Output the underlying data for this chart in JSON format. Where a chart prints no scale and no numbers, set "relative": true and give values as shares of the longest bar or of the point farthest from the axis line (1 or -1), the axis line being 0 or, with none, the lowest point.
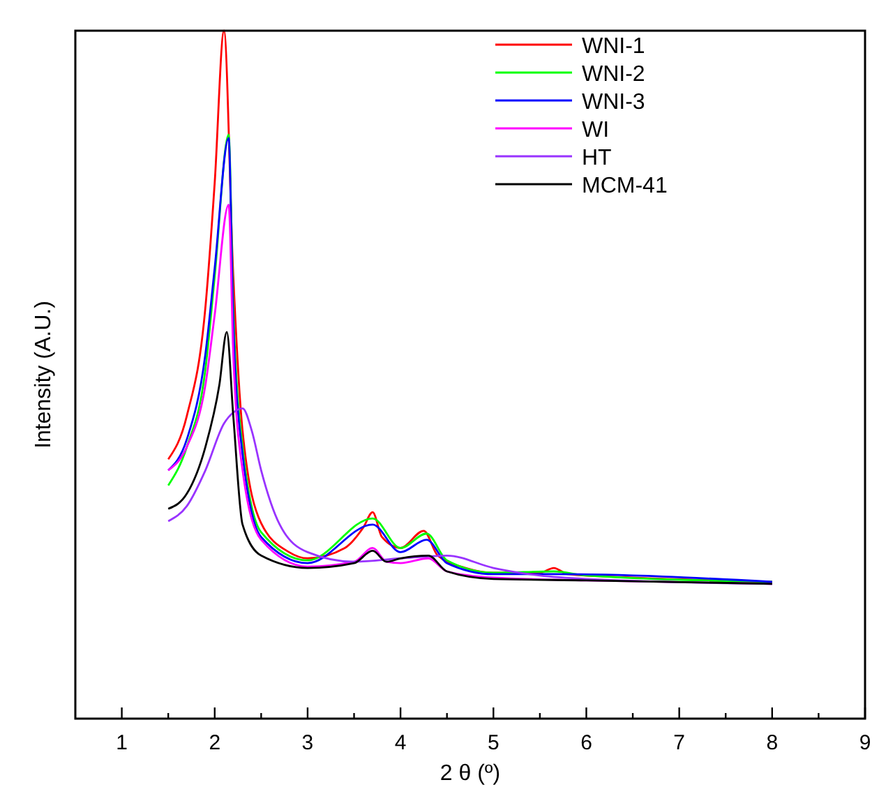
{
  "chart_data": {
    "type": "line",
    "relative": true,
    "xlabel": "2 θ (º)",
    "ylabel": "Intensity (A.U.)",
    "xlim": [
      0.5,
      9
    ],
    "xticks": [
      1,
      {
        "value": 1.5,
        "label": null
      },
      2,
      {
        "value": 2.5,
        "label": null
      },
      3,
      {
        "value": 3.5,
        "label": null
      },
      4,
      {
        "value": 4.5,
        "label": null
      },
      5,
      {
        "value": 5.5,
        "label": null
      },
      6,
      {
        "value": 6.5,
        "label": null
      },
      7,
      {
        "value": 7.5,
        "label": null
      },
      8,
      {
        "value": 8.5,
        "label": null
      },
      9
    ],
    "legend": "top right",
    "grid": false,
    "marker": "none",
    "line_style": "solid",
    "series": [
      {
        "name": "WNI-1",
        "color": "#ff0000",
        "x": [
          1.5,
          1.7,
          1.9,
          2.0,
          2.1,
          2.2,
          2.3,
          2.5,
          2.8,
          3.0,
          3.4,
          3.6,
          3.7,
          3.8,
          4.0,
          4.25,
          4.4,
          4.7,
          5.0,
          5.5,
          5.65,
          5.8,
          6.5,
          8
        ],
        "values": [
          0.377,
          0.44,
          0.598,
          0.779,
          1,
          0.643,
          0.418,
          0.284,
          0.242,
          0.233,
          0.248,
          0.278,
          0.3,
          0.264,
          0.248,
          0.273,
          0.237,
          0.219,
          0.212,
          0.212,
          0.219,
          0.21,
          0.205,
          0.199
        ]
      },
      {
        "name": "WNI-2",
        "color": "#00ff00",
        "x": [
          1.5,
          1.7,
          1.9,
          2.0,
          2.15,
          2.2,
          2.3,
          2.5,
          3.0,
          3.7,
          4.0,
          4.28,
          4.5,
          5.0,
          5.65,
          6.0,
          8
        ],
        "values": [
          0.339,
          0.395,
          0.508,
          0.643,
          0.849,
          0.598,
          0.395,
          0.271,
          0.23,
          0.291,
          0.248,
          0.269,
          0.23,
          0.212,
          0.214,
          0.208,
          0.199
        ]
      },
      {
        "name": "WNI-3",
        "color": "#0000ff",
        "x": [
          1.5,
          1.7,
          1.9,
          2.0,
          2.15,
          2.2,
          2.3,
          2.5,
          3.0,
          3.7,
          4.0,
          4.28,
          4.5,
          5.0,
          5.65,
          8
        ],
        "values": [
          0.361,
          0.406,
          0.53,
          0.655,
          0.844,
          0.576,
          0.384,
          0.264,
          0.226,
          0.282,
          0.242,
          0.26,
          0.226,
          0.21,
          0.21,
          0.199
        ]
      },
      {
        "name": "WI",
        "color": "#ff00ff",
        "x": [
          1.5,
          1.7,
          1.9,
          2.0,
          2.15,
          2.2,
          2.3,
          2.5,
          3.0,
          3.5,
          3.7,
          3.85,
          4.0,
          4.3,
          4.5,
          5.0,
          6.0,
          8
        ],
        "values": [
          0.361,
          0.395,
          0.485,
          0.587,
          0.747,
          0.53,
          0.361,
          0.26,
          0.221,
          0.228,
          0.248,
          0.228,
          0.226,
          0.233,
          0.214,
          0.205,
          0.201,
          0.196
        ]
      },
      {
        "name": "HT",
        "color": "#9933ff",
        "x": [
          1.5,
          1.7,
          1.9,
          2.1,
          2.2,
          2.3,
          2.4,
          2.5,
          2.7,
          3.0,
          3.5,
          4.0,
          4.5,
          5.0,
          5.5,
          6.0,
          8
        ],
        "values": [
          0.287,
          0.309,
          0.361,
          0.429,
          0.445,
          0.451,
          0.418,
          0.361,
          0.282,
          0.242,
          0.228,
          0.233,
          0.237,
          0.219,
          0.208,
          0.203,
          0.196
        ]
      },
      {
        "name": "MCM-41",
        "color": "#000000",
        "x": [
          1.5,
          1.7,
          1.9,
          2.05,
          2.13,
          2.2,
          2.3,
          2.5,
          3.0,
          3.5,
          3.7,
          3.85,
          4.0,
          4.3,
          4.5,
          5.0,
          6.0,
          8
        ],
        "values": [
          0.305,
          0.327,
          0.395,
          0.485,
          0.562,
          0.44,
          0.282,
          0.237,
          0.219,
          0.226,
          0.244,
          0.228,
          0.233,
          0.237,
          0.214,
          0.203,
          0.201,
          0.196
        ]
      }
    ]
  }
}
